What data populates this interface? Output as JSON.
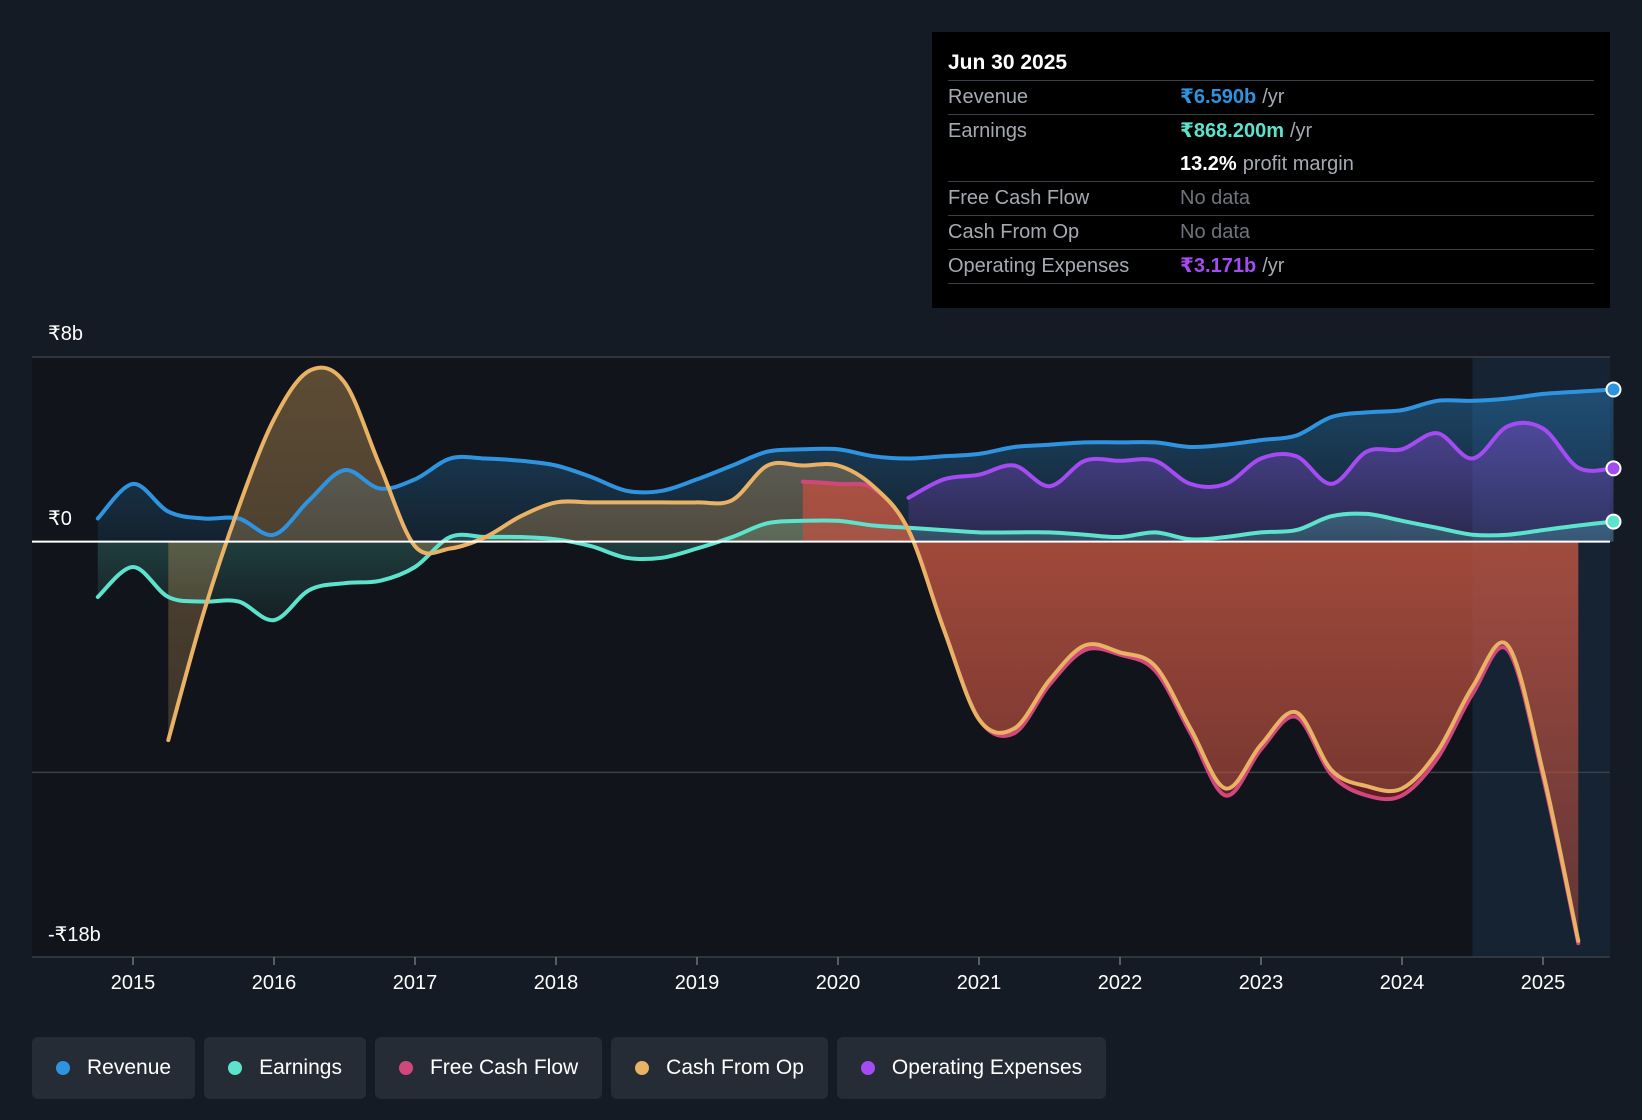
{
  "tooltip": {
    "date": "Jun 30 2025",
    "rows": [
      {
        "label": "Revenue",
        "value": "₹6.590b",
        "unit": "/yr",
        "color": "#2f94e0"
      },
      {
        "label": "Earnings",
        "value": "₹868.200m",
        "unit": "/yr",
        "color": "#5de3cd"
      },
      {
        "label": "",
        "value": "13.2%",
        "unit": "profit margin",
        "color": "#ffffff"
      },
      {
        "label": "Free Cash Flow",
        "value": "No data"
      },
      {
        "label": "Cash From Op",
        "value": "No data"
      },
      {
        "label": "Operating Expenses",
        "value": "₹3.171b",
        "unit": "/yr",
        "color": "#a44bf2"
      }
    ]
  },
  "legend": [
    {
      "label": "Revenue",
      "color": "#2f94e0"
    },
    {
      "label": "Earnings",
      "color": "#5de3cd"
    },
    {
      "label": "Free Cash Flow",
      "color": "#d0487b"
    },
    {
      "label": "Cash From Op",
      "color": "#e9b264"
    },
    {
      "label": "Operating Expenses",
      "color": "#a44bf2"
    }
  ],
  "chart_data": {
    "type": "line",
    "title": "",
    "xlabel": "",
    "ylabel": "",
    "xlim": [
      2014.25,
      2025.5
    ],
    "ylim": [
      -18,
      8
    ],
    "y_axis_labels": [
      {
        "value": 8,
        "text": "₹8b"
      },
      {
        "value": 0,
        "text": "₹0"
      },
      {
        "value": -18,
        "text": "-₹18b"
      }
    ],
    "gridlines": [
      8,
      -10
    ],
    "x_ticks": [
      2015,
      2016,
      2017,
      2018,
      2019,
      2020,
      2021,
      2022,
      2023,
      2024,
      2025
    ],
    "highlight_from": 2024.5,
    "series": [
      {
        "name": "Revenue",
        "color": "#2f94e0",
        "unit": "b",
        "x": [
          2014.75,
          2015.0,
          2015.25,
          2015.5,
          2015.75,
          2016.0,
          2016.25,
          2016.5,
          2016.75,
          2017.0,
          2017.25,
          2017.5,
          2017.75,
          2018.0,
          2018.25,
          2018.5,
          2018.75,
          2019.0,
          2019.25,
          2019.5,
          2019.75,
          2020.0,
          2020.25,
          2020.5,
          2020.75,
          2021.0,
          2021.25,
          2021.5,
          2021.75,
          2022.0,
          2022.25,
          2022.5,
          2022.75,
          2023.0,
          2023.25,
          2023.5,
          2023.75,
          2024.0,
          2024.25,
          2024.5,
          2024.75,
          2025.0,
          2025.25,
          2025.5
        ],
        "values": [
          1.0,
          2.5,
          1.3,
          1.0,
          1.0,
          0.3,
          1.8,
          3.1,
          2.3,
          2.7,
          3.6,
          3.6,
          3.5,
          3.3,
          2.8,
          2.2,
          2.2,
          2.7,
          3.3,
          3.9,
          4.0,
          4.0,
          3.7,
          3.6,
          3.7,
          3.8,
          4.1,
          4.2,
          4.3,
          4.3,
          4.3,
          4.1,
          4.2,
          4.4,
          4.6,
          5.4,
          5.6,
          5.7,
          6.1,
          6.1,
          6.2,
          6.4,
          6.5,
          6.59
        ]
      },
      {
        "name": "Earnings",
        "color": "#5de3cd",
        "unit": "b",
        "x": [
          2014.75,
          2015.0,
          2015.25,
          2015.5,
          2015.75,
          2016.0,
          2016.25,
          2016.5,
          2016.75,
          2017.0,
          2017.25,
          2017.5,
          2017.75,
          2018.0,
          2018.25,
          2018.5,
          2018.75,
          2019.0,
          2019.25,
          2019.5,
          2019.75,
          2020.0,
          2020.25,
          2020.5,
          2020.75,
          2021.0,
          2021.25,
          2021.5,
          2021.75,
          2022.0,
          2022.25,
          2022.5,
          2022.75,
          2023.0,
          2023.25,
          2023.5,
          2023.75,
          2024.0,
          2024.25,
          2024.5,
          2024.75,
          2025.0,
          2025.25,
          2025.5
        ],
        "values": [
          -2.4,
          -1.1,
          -2.4,
          -2.6,
          -2.6,
          -3.4,
          -2.1,
          -1.8,
          -1.7,
          -1.1,
          0.2,
          0.2,
          0.2,
          0.1,
          -0.2,
          -0.7,
          -0.7,
          -0.3,
          0.2,
          0.8,
          0.9,
          0.9,
          0.7,
          0.6,
          0.5,
          0.4,
          0.4,
          0.4,
          0.3,
          0.2,
          0.4,
          0.1,
          0.2,
          0.4,
          0.5,
          1.1,
          1.2,
          0.9,
          0.6,
          0.3,
          0.3,
          0.5,
          0.7,
          0.868
        ]
      },
      {
        "name": "Free Cash Flow",
        "color": "#d0487b",
        "unit": "b",
        "x": [
          2019.75,
          2020.0,
          2020.25,
          2020.5,
          2020.75,
          2021.0,
          2021.25,
          2021.5,
          2021.75,
          2022.0,
          2022.25,
          2022.5,
          2022.75,
          2023.0,
          2023.25,
          2023.5,
          2023.75,
          2024.0,
          2024.25,
          2024.5,
          2024.75,
          2025.0,
          2025.25
        ],
        "values": [
          2.6,
          2.5,
          2.3,
          0.5,
          -3.8,
          -7.7,
          -8.3,
          -6.2,
          -4.7,
          -4.9,
          -5.6,
          -8.3,
          -11.0,
          -9.0,
          -7.6,
          -10.1,
          -11.0,
          -11.0,
          -9.4,
          -6.6,
          -4.7,
          -10.2,
          -17.4
        ]
      },
      {
        "name": "Cash From Op",
        "color": "#e9b264",
        "unit": "b",
        "x": [
          2015.25,
          2015.5,
          2015.75,
          2016.0,
          2016.25,
          2016.5,
          2016.75,
          2017.0,
          2017.25,
          2017.5,
          2017.75,
          2018.0,
          2018.25,
          2018.5,
          2018.75,
          2019.0,
          2019.25,
          2019.5,
          2019.75,
          2020.0,
          2020.25,
          2020.5,
          2020.75,
          2021.0,
          2021.25,
          2021.5,
          2021.75,
          2022.0,
          2022.25,
          2022.5,
          2022.75,
          2023.0,
          2023.25,
          2023.5,
          2023.75,
          2024.0,
          2024.25,
          2024.5,
          2024.75,
          2025.0,
          2025.25
        ],
        "values": [
          -8.6,
          -3.1,
          1.5,
          5.3,
          7.4,
          6.9,
          3.3,
          -0.2,
          -0.3,
          0.2,
          1.1,
          1.7,
          1.7,
          1.7,
          1.7,
          1.7,
          1.8,
          3.3,
          3.3,
          3.3,
          2.4,
          0.5,
          -3.8,
          -7.7,
          -8.1,
          -6.0,
          -4.5,
          -4.8,
          -5.4,
          -8.1,
          -10.7,
          -8.8,
          -7.4,
          -9.9,
          -10.6,
          -10.7,
          -9.1,
          -6.3,
          -4.5,
          -10.0,
          -17.3
        ]
      },
      {
        "name": "Operating Expenses",
        "color": "#a44bf2",
        "unit": "b",
        "x": [
          2020.5,
          2020.75,
          2021.0,
          2021.25,
          2021.5,
          2021.75,
          2022.0,
          2022.25,
          2022.5,
          2022.75,
          2023.0,
          2023.25,
          2023.5,
          2023.75,
          2024.0,
          2024.25,
          2024.5,
          2024.75,
          2025.0,
          2025.25,
          2025.5
        ],
        "values": [
          1.9,
          2.7,
          2.9,
          3.3,
          2.4,
          3.5,
          3.5,
          3.5,
          2.5,
          2.5,
          3.6,
          3.7,
          2.5,
          3.9,
          4.0,
          4.7,
          3.6,
          5.0,
          4.9,
          3.2,
          3.171
        ]
      }
    ]
  }
}
